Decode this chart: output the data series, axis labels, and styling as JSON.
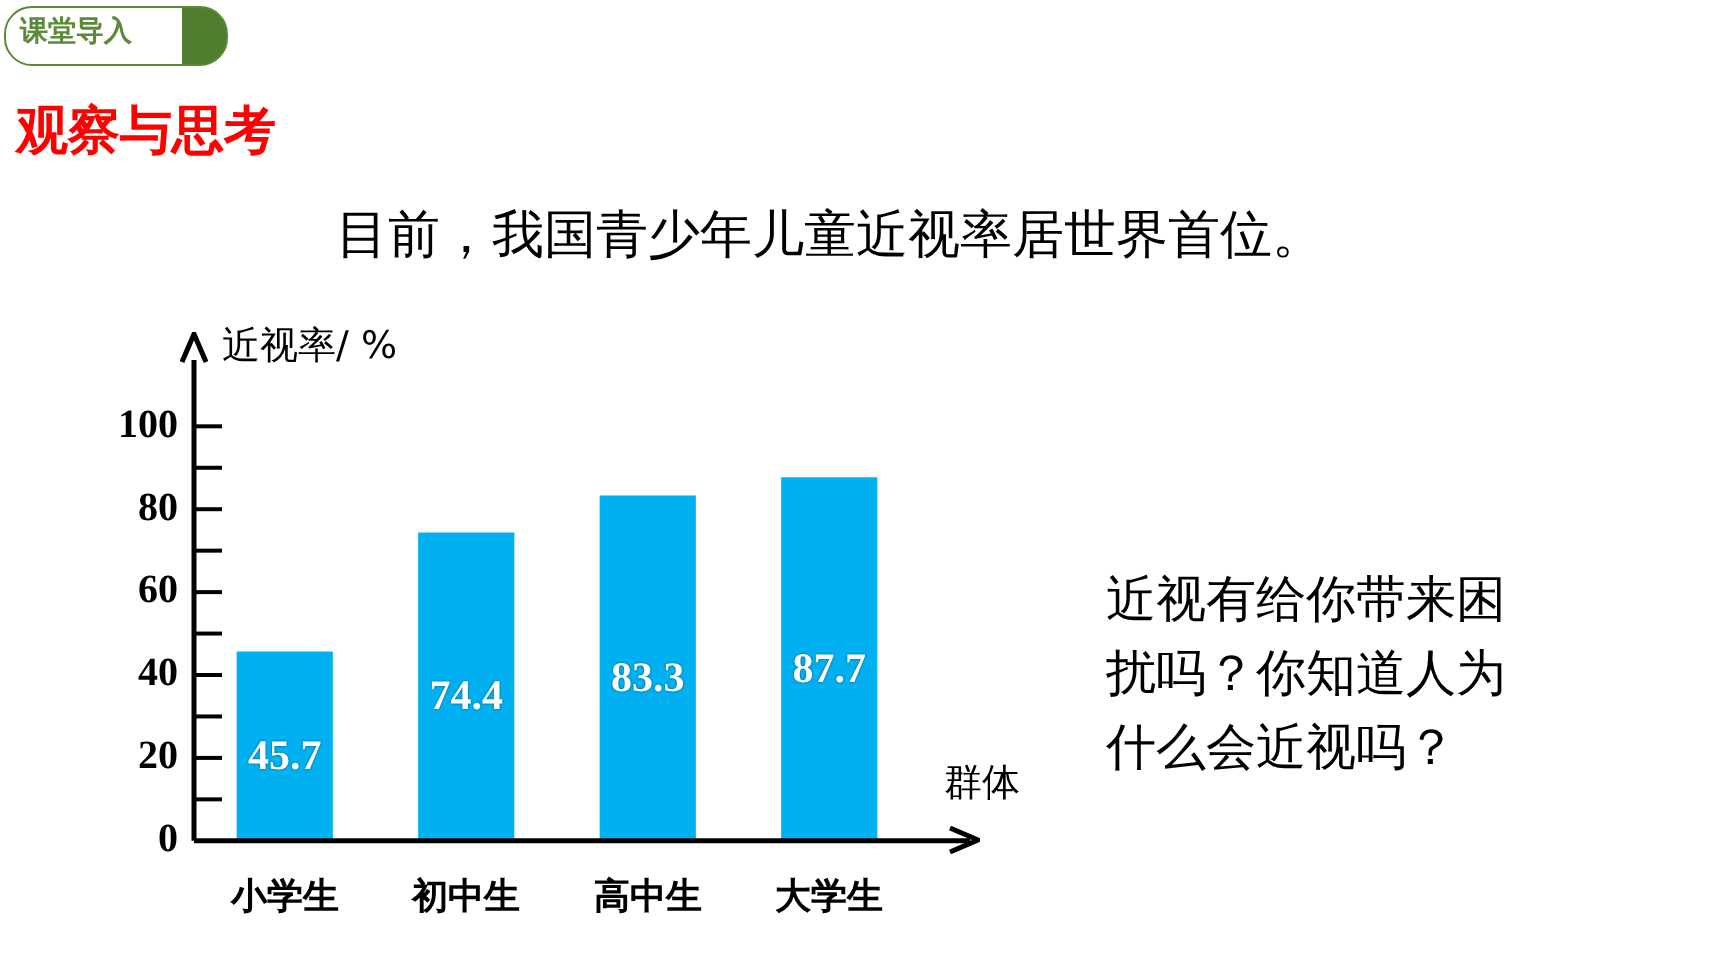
{
  "chart_data": {
    "type": "bar",
    "title": "目前，我国青少年儿童近视率居世界首位。",
    "ylabel": "近视率/ %",
    "xlabel": "群体",
    "categories": [
      "小学生",
      "初中生",
      "高中生",
      "大学生"
    ],
    "values": [
      45.7,
      74.4,
      83.3,
      87.7
    ],
    "color": "#00b0f0",
    "data_labels": true,
    "ylim": [
      0,
      116
    ],
    "yticks": [
      0,
      {
        "value": 10,
        "label": null
      },
      20,
      {
        "value": 30,
        "label": null
      },
      40,
      {
        "value": 50,
        "label": null
      },
      60,
      {
        "value": 70,
        "label": null
      },
      80,
      {
        "value": 90,
        "label": null
      },
      100
    ],
    "legend": false,
    "annotations": [
      "课堂导入",
      "观察与思考",
      "近视有给你带来困扰吗？你知道人为什么会近视吗？"
    ]
  }
}
